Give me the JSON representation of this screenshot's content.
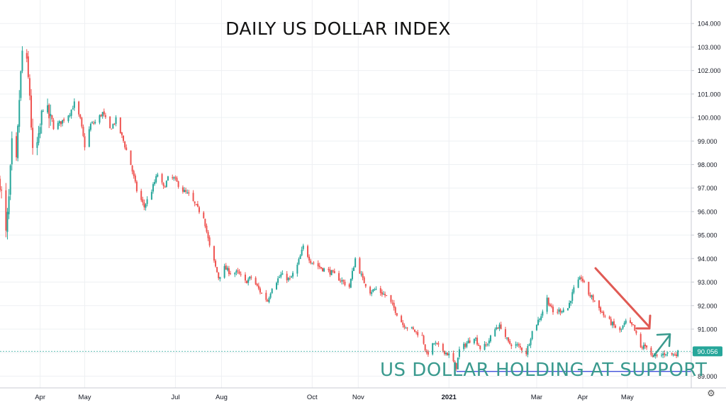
{
  "chart_data": {
    "type": "candlestick",
    "title": "DAILY US DOLLAR INDEX",
    "annotation": "US DOLLAR HOLDING AT SUPPORT",
    "ylim": [
      88.5,
      105.0
    ],
    "y_ticks": [
      "89.000",
      "90.000",
      "91.000",
      "92.000",
      "93.000",
      "94.000",
      "95.000",
      "96.000",
      "97.000",
      "98.000",
      "99.000",
      "100.000",
      "101.000",
      "102.000",
      "103.000",
      "104.000"
    ],
    "x_ticks": [
      {
        "label": "Apr",
        "date": "2020-04-01",
        "bold": false
      },
      {
        "label": "May",
        "date": "2020-05-01",
        "bold": false
      },
      {
        "label": "Jul",
        "date": "2020-07-01",
        "bold": false
      },
      {
        "label": "Aug",
        "date": "2020-08-01",
        "bold": false
      },
      {
        "label": "Oct",
        "date": "2020-10-01",
        "bold": false
      },
      {
        "label": "Nov",
        "date": "2020-11-01",
        "bold": false
      },
      {
        "label": "2021",
        "date": "2021-01-01",
        "bold": true
      },
      {
        "label": "Mar",
        "date": "2021-03-01",
        "bold": false
      },
      {
        "label": "Apr",
        "date": "2021-04-01",
        "bold": false
      },
      {
        "label": "May",
        "date": "2021-05-01",
        "bold": false
      }
    ],
    "x_range": [
      "2020-03-05",
      "2021-06-13"
    ],
    "last_price": "90.056",
    "support_level": 89.2,
    "support_start": "2021-01-06",
    "grid": true,
    "colors": {
      "up": "#26a69a",
      "down": "#ef5350",
      "support": "#2a3bd6",
      "arrow_down": "#e05a54",
      "arrow_up": "#3a9a8e",
      "price_tag": "#26a69a"
    },
    "close_path": [
      [
        "2020-03-05",
        97.3
      ],
      [
        "2020-03-09",
        95.0
      ],
      [
        "2020-03-11",
        96.5
      ],
      [
        "2020-03-13",
        98.8
      ],
      [
        "2020-03-16",
        98.0
      ],
      [
        "2020-03-18",
        100.8
      ],
      [
        "2020-03-20",
        102.8
      ],
      [
        "2020-03-23",
        102.2
      ],
      [
        "2020-03-25",
        101.0
      ],
      [
        "2020-03-27",
        98.4
      ],
      [
        "2020-03-31",
        99.0
      ],
      [
        "2020-04-03",
        100.6
      ],
      [
        "2020-04-07",
        100.0
      ],
      [
        "2020-04-10",
        99.6
      ],
      [
        "2020-04-15",
        99.8
      ],
      [
        "2020-04-21",
        100.2
      ],
      [
        "2020-04-24",
        100.6
      ],
      [
        "2020-04-28",
        99.9
      ],
      [
        "2020-05-01",
        98.8
      ],
      [
        "2020-05-05",
        99.7
      ],
      [
        "2020-05-08",
        99.8
      ],
      [
        "2020-05-13",
        100.2
      ],
      [
        "2020-05-18",
        99.5
      ],
      [
        "2020-05-22",
        99.9
      ],
      [
        "2020-05-27",
        99.0
      ],
      [
        "2020-06-01",
        98.0
      ],
      [
        "2020-06-05",
        96.9
      ],
      [
        "2020-06-10",
        96.2
      ],
      [
        "2020-06-15",
        96.9
      ],
      [
        "2020-06-19",
        97.6
      ],
      [
        "2020-06-23",
        97.0
      ],
      [
        "2020-06-26",
        97.4
      ],
      [
        "2020-06-30",
        97.4
      ],
      [
        "2020-07-06",
        96.9
      ],
      [
        "2020-07-10",
        96.7
      ],
      [
        "2020-07-15",
        96.2
      ],
      [
        "2020-07-20",
        95.8
      ],
      [
        "2020-07-24",
        94.5
      ],
      [
        "2020-07-30",
        93.2
      ],
      [
        "2020-08-03",
        93.6
      ],
      [
        "2020-08-07",
        93.4
      ],
      [
        "2020-08-12",
        93.4
      ],
      [
        "2020-08-17",
        93.0
      ],
      [
        "2020-08-21",
        93.2
      ],
      [
        "2020-08-27",
        92.6
      ],
      [
        "2020-09-01",
        92.2
      ],
      [
        "2020-09-04",
        92.8
      ],
      [
        "2020-09-10",
        93.3
      ],
      [
        "2020-09-16",
        93.1
      ],
      [
        "2020-09-21",
        93.7
      ],
      [
        "2020-09-25",
        94.5
      ],
      [
        "2020-09-30",
        93.9
      ],
      [
        "2020-10-07",
        93.6
      ],
      [
        "2020-10-14",
        93.4
      ],
      [
        "2020-10-20",
        93.1
      ],
      [
        "2020-10-26",
        92.8
      ],
      [
        "2020-10-30",
        94.0
      ],
      [
        "2020-11-04",
        93.1
      ],
      [
        "2020-11-09",
        92.6
      ],
      [
        "2020-11-13",
        92.7
      ],
      [
        "2020-11-20",
        92.4
      ],
      [
        "2020-11-25",
        91.9
      ],
      [
        "2020-12-01",
        91.2
      ],
      [
        "2020-12-07",
        91.0
      ],
      [
        "2020-12-14",
        90.7
      ],
      [
        "2020-12-17",
        89.9
      ],
      [
        "2020-12-22",
        90.4
      ],
      [
        "2020-12-28",
        90.1
      ],
      [
        "2021-01-01",
        89.9
      ],
      [
        "2021-01-06",
        89.4
      ],
      [
        "2021-01-08",
        90.1
      ],
      [
        "2021-01-13",
        90.4
      ],
      [
        "2021-01-18",
        90.7
      ],
      [
        "2021-01-22",
        90.2
      ],
      [
        "2021-01-26",
        90.3
      ],
      [
        "2021-02-02",
        91.1
      ],
      [
        "2021-02-05",
        91.1
      ],
      [
        "2021-02-10",
        90.4
      ],
      [
        "2021-02-16",
        90.3
      ],
      [
        "2021-02-22",
        90.0
      ],
      [
        "2021-02-26",
        90.9
      ],
      [
        "2021-03-04",
        91.6
      ],
      [
        "2021-03-08",
        92.3
      ],
      [
        "2021-03-12",
        91.7
      ],
      [
        "2021-03-17",
        91.8
      ],
      [
        "2021-03-22",
        91.9
      ],
      [
        "2021-03-26",
        92.7
      ],
      [
        "2021-03-31",
        93.2
      ],
      [
        "2021-04-05",
        92.5
      ],
      [
        "2021-04-09",
        92.2
      ],
      [
        "2021-04-15",
        91.6
      ],
      [
        "2021-04-21",
        91.2
      ],
      [
        "2021-04-26",
        90.9
      ],
      [
        "2021-04-30",
        91.3
      ],
      [
        "2021-05-05",
        91.1
      ],
      [
        "2021-05-10",
        90.2
      ],
      [
        "2021-05-14",
        90.3
      ],
      [
        "2021-05-18",
        89.8
      ],
      [
        "2021-05-24",
        89.9
      ],
      [
        "2021-05-27",
        90.0
      ],
      [
        "2021-06-01",
        89.9
      ],
      [
        "2021-06-04",
        90.0
      ]
    ]
  }
}
